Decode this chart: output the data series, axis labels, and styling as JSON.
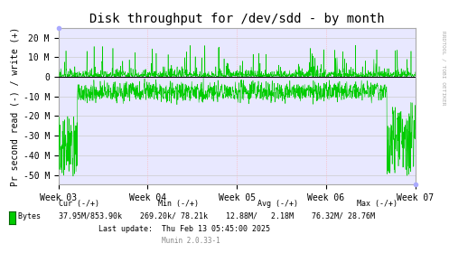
{
  "title": "Disk throughput for /dev/sdd - by month",
  "ylabel": "Pr second read (-) / write (+)",
  "bg_color": "#FFFFFF",
  "plot_bg_color": "#E8E8FF",
  "line_color": "#00CC00",
  "zero_line_color": "#000000",
  "ylim": [
    -55000000,
    25000000
  ],
  "yticks": [
    -50000000,
    -40000000,
    -30000000,
    -20000000,
    -10000000,
    0,
    10000000,
    20000000
  ],
  "ytick_labels": [
    "-50 M",
    "-40 M",
    "-30 M",
    "-20 M",
    "-10 M",
    "0",
    "10 M",
    "20 M"
  ],
  "xtick_labels": [
    "Week 03",
    "Week 04",
    "Week 05",
    "Week 06",
    "Week 07"
  ],
  "right_label": "RRDTOOL / TOBI OETIKER",
  "legend_color": "#00CC00",
  "stats_line3": "Last update:  Thu Feb 13 05:45:00 2025",
  "munin_version": "Munin 2.0.33-1",
  "n_points": 1500
}
